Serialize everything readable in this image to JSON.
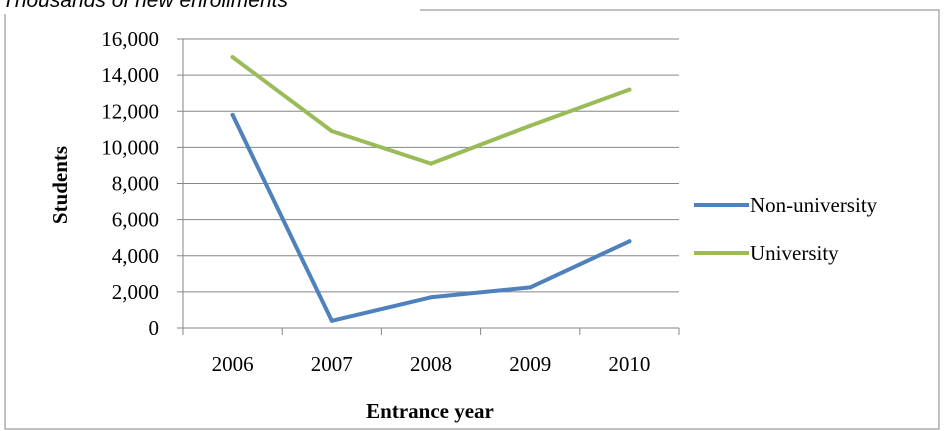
{
  "header": {
    "caption": "Thousands of new enrollments"
  },
  "chart_data": {
    "type": "line",
    "x": [
      "2006",
      "2007",
      "2008",
      "2009",
      "2010"
    ],
    "xlabel": "Entrance year",
    "ylabel": "Students",
    "ylim": [
      0,
      16000
    ],
    "yticks": [
      0,
      2000,
      4000,
      6000,
      8000,
      10000,
      12000,
      14000,
      16000
    ],
    "ytick_labels": [
      "0",
      "2,000",
      "4,000",
      "6,000",
      "8,000",
      "10,000",
      "12,000",
      "14,000",
      "16,000"
    ],
    "grid": true,
    "legend_position": "right",
    "series": [
      {
        "name": "Non-university",
        "color": "#4f81bd",
        "values": [
          11800,
          400,
          1700,
          2250,
          4800
        ]
      },
      {
        "name": "University",
        "color": "#9bbb59",
        "values": [
          15000,
          10900,
          9100,
          11200,
          13200
        ]
      }
    ]
  }
}
